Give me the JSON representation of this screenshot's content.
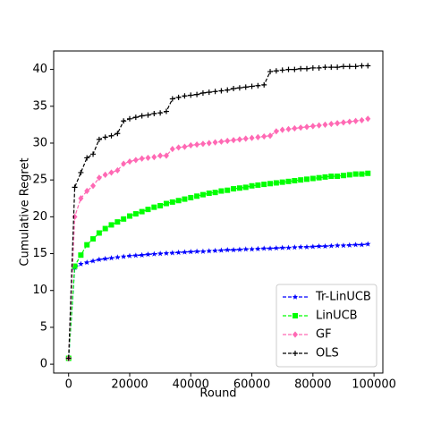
{
  "chart_data": {
    "type": "line",
    "xlabel": "Round",
    "ylabel": "Cumulative Regret",
    "x": [
      0,
      2000,
      4000,
      6000,
      8000,
      10000,
      12000,
      14000,
      16000,
      18000,
      20000,
      22000,
      24000,
      26000,
      28000,
      30000,
      32000,
      34000,
      36000,
      38000,
      40000,
      42000,
      44000,
      46000,
      48000,
      50000,
      52000,
      54000,
      56000,
      58000,
      60000,
      62000,
      64000,
      66000,
      68000,
      70000,
      72000,
      74000,
      76000,
      78000,
      80000,
      82000,
      84000,
      86000,
      88000,
      90000,
      92000,
      94000,
      96000,
      98000
    ],
    "series": [
      {
        "name": "Tr-LinUCB",
        "color": "#0000ff",
        "marker": "star",
        "values": [
          0.8,
          13.1,
          13.6,
          13.8,
          14.0,
          14.2,
          14.3,
          14.4,
          14.5,
          14.6,
          14.7,
          14.75,
          14.8,
          14.9,
          14.95,
          15.0,
          15.05,
          15.1,
          15.15,
          15.2,
          15.25,
          15.3,
          15.3,
          15.35,
          15.4,
          15.45,
          15.5,
          15.5,
          15.55,
          15.6,
          15.6,
          15.65,
          15.7,
          15.7,
          15.75,
          15.8,
          15.8,
          15.85,
          15.9,
          15.9,
          15.95,
          16.0,
          16.0,
          16.05,
          16.1,
          16.1,
          16.15,
          16.2,
          16.2,
          16.3
        ]
      },
      {
        "name": "LinUCB",
        "color": "#00ff00",
        "marker": "square",
        "values": [
          0.8,
          13.3,
          14.8,
          16.2,
          17.0,
          17.8,
          18.4,
          18.9,
          19.3,
          19.7,
          20.1,
          20.4,
          20.7,
          21.0,
          21.3,
          21.5,
          21.8,
          22.0,
          22.2,
          22.4,
          22.6,
          22.8,
          23.0,
          23.2,
          23.3,
          23.5,
          23.6,
          23.8,
          23.9,
          24.0,
          24.2,
          24.3,
          24.4,
          24.5,
          24.6,
          24.7,
          24.8,
          24.9,
          25.0,
          25.1,
          25.2,
          25.3,
          25.4,
          25.5,
          25.5,
          25.6,
          25.7,
          25.8,
          25.8,
          25.9
        ]
      },
      {
        "name": "GF",
        "color": "#ff69b4",
        "marker": "diamond",
        "values": [
          0.8,
          20.0,
          22.5,
          23.5,
          24.2,
          25.3,
          25.7,
          26.0,
          26.3,
          27.2,
          27.5,
          27.7,
          27.9,
          28.0,
          28.1,
          28.3,
          28.3,
          29.2,
          29.4,
          29.5,
          29.7,
          29.8,
          29.9,
          30.0,
          30.1,
          30.2,
          30.3,
          30.4,
          30.5,
          30.6,
          30.7,
          30.8,
          30.9,
          31.0,
          31.6,
          31.8,
          31.9,
          32.0,
          32.1,
          32.2,
          32.3,
          32.4,
          32.5,
          32.6,
          32.7,
          32.8,
          32.9,
          33.0,
          33.1,
          33.3
        ]
      },
      {
        "name": "OLS",
        "color": "#000000",
        "marker": "plus",
        "values": [
          0.8,
          24.0,
          26.0,
          28.0,
          28.5,
          30.5,
          30.8,
          31.0,
          31.3,
          33.0,
          33.3,
          33.5,
          33.7,
          33.8,
          34.0,
          34.1,
          34.3,
          36.0,
          36.2,
          36.4,
          36.5,
          36.6,
          36.8,
          36.9,
          37.0,
          37.1,
          37.2,
          37.4,
          37.5,
          37.6,
          37.7,
          37.8,
          37.9,
          39.7,
          39.8,
          39.9,
          40.0,
          40.0,
          40.1,
          40.1,
          40.2,
          40.2,
          40.3,
          40.3,
          40.3,
          40.4,
          40.4,
          40.4,
          40.5,
          40.5
        ]
      }
    ],
    "xlim": [
      -4900,
      102900
    ],
    "xticks": [
      0,
      20000,
      40000,
      60000,
      80000,
      100000
    ],
    "ylim": [
      -1.2,
      42.5
    ],
    "yticks": [
      0,
      5,
      10,
      15,
      20,
      25,
      30,
      35,
      40
    ],
    "legend": "lower right"
  }
}
